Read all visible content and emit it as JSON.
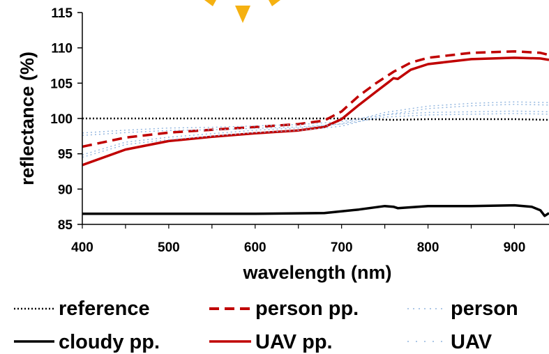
{
  "chart_data": {
    "type": "line",
    "xlabel": "wavelength (nm)",
    "ylabel": "reflectance (%)",
    "xlim": [
      400,
      940
    ],
    "ylim": [
      85,
      115
    ],
    "xticks": [
      400,
      500,
      600,
      700,
      800,
      900
    ],
    "yticks": [
      85,
      90,
      95,
      100,
      105,
      110,
      115
    ],
    "grid": false,
    "legend_position": "bottom",
    "series": [
      {
        "name": "reference",
        "color": "#000000",
        "style": "dotted",
        "x": [
          400,
          500,
          600,
          700,
          760,
          800,
          900,
          940
        ],
        "y": [
          100,
          100,
          100,
          100,
          99.8,
          99.9,
          99.9,
          99.8
        ]
      },
      {
        "name": "person pp.",
        "color": "#c00000",
        "style": "dashed",
        "x": [
          400,
          450,
          500,
          550,
          600,
          650,
          680,
          700,
          720,
          740,
          760,
          780,
          800,
          850,
          900,
          930,
          940
        ],
        "y": [
          96.0,
          97.3,
          98.0,
          98.4,
          98.8,
          99.2,
          99.7,
          101.0,
          103.2,
          105.0,
          106.6,
          107.9,
          108.6,
          109.3,
          109.5,
          109.3,
          109.0
        ]
      },
      {
        "name": "person",
        "color": "#8fb4de",
        "style": "dotted-open",
        "x": [
          400,
          450,
          500,
          550,
          600,
          650,
          700,
          750,
          800,
          850,
          900,
          940
        ],
        "y": [
          97.6,
          98.0,
          98.3,
          98.4,
          98.6,
          98.8,
          99.2,
          100.2,
          100.5,
          100.6,
          100.7,
          100.6
        ]
      },
      {
        "name": "cloudy pp.",
        "color": "#000000",
        "style": "solid",
        "x": [
          400,
          500,
          600,
          680,
          720,
          750,
          760,
          765,
          800,
          850,
          900,
          920,
          930,
          935,
          940
        ],
        "y": [
          86.5,
          86.5,
          86.5,
          86.6,
          87.1,
          87.6,
          87.5,
          87.3,
          87.6,
          87.6,
          87.7,
          87.5,
          87.0,
          86.2,
          86.6
        ]
      },
      {
        "name": "UAV pp.",
        "color": "#c00000",
        "style": "solid",
        "x": [
          400,
          450,
          500,
          550,
          600,
          650,
          680,
          700,
          720,
          740,
          755,
          760,
          765,
          780,
          800,
          850,
          900,
          930,
          940
        ],
        "y": [
          93.4,
          95.6,
          96.8,
          97.4,
          97.9,
          98.3,
          98.8,
          99.9,
          101.9,
          103.8,
          105.2,
          105.7,
          105.6,
          106.9,
          107.7,
          108.4,
          108.6,
          108.5,
          108.3
        ]
      },
      {
        "name": "UAV",
        "color": "#8fb4de",
        "style": "dotted-open",
        "x": [
          400,
          450,
          500,
          550,
          600,
          650,
          700,
          750,
          800,
          850,
          900,
          940
        ],
        "y": [
          94.5,
          96.3,
          97.0,
          97.5,
          98.0,
          98.3,
          98.9,
          100.5,
          101.4,
          101.8,
          102.0,
          101.9
        ]
      }
    ]
  }
}
